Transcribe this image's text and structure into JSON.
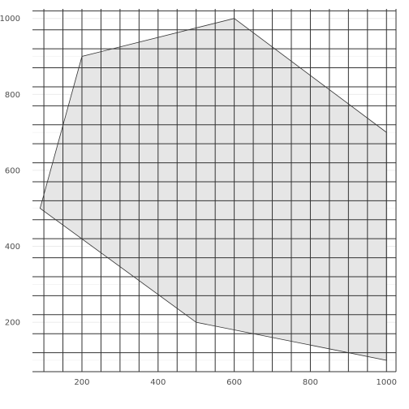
{
  "chart_data": {
    "type": "area",
    "title": "",
    "xlabel": "",
    "ylabel": "",
    "xlim": [
      70,
      1025
    ],
    "ylim": [
      70,
      1025
    ],
    "x_ticks": [
      200,
      400,
      600,
      800,
      1000
    ],
    "y_ticks": [
      200,
      400,
      600,
      800,
      1000
    ],
    "x_tick_labels": [
      "200",
      "400",
      "600",
      "800",
      "1000"
    ],
    "y_tick_labels": [
      "200",
      "400",
      "600",
      "800",
      "1000"
    ],
    "grid": true,
    "legend": "none",
    "polygon": [
      {
        "x": 90,
        "y": 500
      },
      {
        "x": 200,
        "y": 900
      },
      {
        "x": 600,
        "y": 1000
      },
      {
        "x": 1000,
        "y": 700
      },
      {
        "x": 1000,
        "y": 100
      },
      {
        "x": 500,
        "y": 200
      }
    ],
    "overlay_grid": {
      "x_min": 50,
      "x_max": 1025,
      "x_step": 50,
      "y_min": 70,
      "y_max": 1025,
      "y_step": 50
    },
    "colors": {
      "fill": "#e6e6e6",
      "outline": "#333333",
      "overlay_grid": "#333333",
      "panel_grid": "#ebebeb"
    }
  }
}
